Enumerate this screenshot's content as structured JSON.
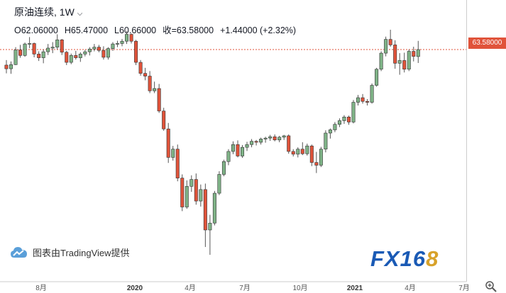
{
  "header": {
    "symbol": "原油连续",
    "interval": "1W",
    "open": "O62.06000",
    "high": "H65.47000",
    "low": "L60.66000",
    "close": "收=63.58000",
    "change": "+1.44000 (+2.32%)"
  },
  "price_tag": "63.58000",
  "attribution": "图表由TradingView提供",
  "logo": {
    "fx": "FX16",
    "eight": "8"
  },
  "colors": {
    "up": "#26a69a",
    "down": "#ef5350",
    "upFill": "#7fb387",
    "downFill": "#e0533a",
    "wick": "#555555",
    "priceLine": "#e0533a"
  },
  "chart_data": {
    "type": "candlestick",
    "x_tick_labels": [
      "8月",
      "2020",
      "4月",
      "7月",
      "10月",
      "2021",
      "4月",
      "7月"
    ],
    "last_close": 63.58,
    "series": [
      {
        "name": "原油连续 1W",
        "ohlc": [
          [
            60.2,
            61.3,
            58.4,
            59.4
          ],
          [
            59.4,
            61.0,
            58.3,
            60.3
          ],
          [
            60.3,
            64.1,
            60.2,
            63.5
          ],
          [
            63.5,
            64.6,
            61.8,
            62.3
          ],
          [
            62.3,
            65.1,
            62.0,
            64.8
          ],
          [
            64.8,
            66.3,
            63.9,
            64.9
          ],
          [
            64.9,
            65.1,
            61.9,
            62.6
          ],
          [
            62.6,
            63.2,
            61.1,
            61.8
          ],
          [
            61.8,
            63.6,
            60.6,
            63.1
          ],
          [
            63.1,
            64.8,
            62.4,
            63.9
          ],
          [
            63.9,
            65.2,
            62.8,
            64.1
          ],
          [
            64.1,
            66.9,
            63.6,
            65.7
          ],
          [
            65.7,
            65.9,
            62.4,
            63.0
          ],
          [
            63.0,
            63.3,
            60.2,
            60.8
          ],
          [
            60.8,
            62.7,
            60.4,
            62.3
          ],
          [
            62.3,
            63.3,
            61.4,
            61.8
          ],
          [
            61.8,
            63.0,
            60.9,
            62.6
          ],
          [
            62.6,
            63.5,
            62.1,
            63.1
          ],
          [
            63.1,
            64.1,
            62.3,
            63.7
          ],
          [
            63.7,
            64.8,
            63.2,
            64.1
          ],
          [
            64.1,
            64.6,
            63.0,
            63.4
          ],
          [
            63.4,
            64.3,
            61.4,
            61.9
          ],
          [
            61.9,
            64.1,
            61.4,
            63.8
          ],
          [
            63.8,
            65.2,
            63.3,
            64.8
          ],
          [
            64.8,
            65.5,
            64.1,
            64.9
          ],
          [
            64.9,
            65.9,
            64.3,
            65.4
          ],
          [
            65.4,
            67.6,
            64.8,
            66.9
          ],
          [
            66.9,
            67.1,
            64.9,
            65.4
          ],
          [
            65.4,
            65.7,
            60.2,
            60.8
          ],
          [
            60.8,
            61.3,
            57.9,
            58.4
          ],
          [
            58.4,
            59.6,
            56.9,
            57.8
          ],
          [
            57.8,
            58.9,
            54.1,
            54.6
          ],
          [
            54.6,
            56.6,
            54.1,
            55.1
          ],
          [
            55.1,
            56.1,
            49.8,
            50.2
          ],
          [
            50.2,
            50.9,
            45.9,
            46.3
          ],
          [
            46.3,
            47.6,
            38.9,
            40.1
          ],
          [
            40.1,
            42.6,
            39.4,
            41.9
          ],
          [
            41.9,
            42.9,
            34.9,
            35.6
          ],
          [
            35.6,
            36.4,
            28.4,
            29.3
          ],
          [
            29.3,
            35.1,
            28.9,
            33.8
          ],
          [
            33.8,
            36.2,
            32.6,
            35.3
          ],
          [
            35.3,
            36.6,
            29.8,
            30.6
          ],
          [
            30.6,
            34.2,
            29.4,
            33.1
          ],
          [
            33.1,
            34.4,
            20.6,
            24.3
          ],
          [
            24.3,
            27.6,
            18.9,
            25.8
          ],
          [
            25.8,
            32.8,
            25.3,
            32.3
          ],
          [
            32.3,
            37.1,
            31.9,
            36.4
          ],
          [
            36.4,
            39.6,
            36.0,
            39.2
          ],
          [
            39.2,
            41.9,
            38.4,
            41.4
          ],
          [
            41.4,
            43.6,
            40.8,
            42.9
          ],
          [
            42.9,
            43.8,
            40.1,
            40.4
          ],
          [
            40.4,
            42.8,
            40.0,
            42.3
          ],
          [
            42.3,
            43.5,
            41.5,
            42.9
          ],
          [
            42.9,
            44.1,
            42.3,
            43.6
          ],
          [
            43.6,
            43.9,
            42.7,
            43.4
          ],
          [
            43.4,
            44.4,
            42.9,
            44.1
          ],
          [
            44.1,
            44.6,
            43.3,
            44.3
          ],
          [
            44.3,
            45.0,
            43.7,
            44.6
          ],
          [
            44.6,
            45.1,
            43.6,
            43.9
          ],
          [
            43.9,
            44.8,
            43.4,
            44.5
          ],
          [
            44.5,
            45.0,
            43.9,
            44.8
          ],
          [
            44.8,
            45.1,
            40.9,
            41.4
          ],
          [
            41.4,
            41.9,
            40.3,
            40.8
          ],
          [
            40.8,
            42.3,
            40.1,
            41.9
          ],
          [
            41.9,
            43.4,
            40.6,
            40.9
          ],
          [
            40.9,
            43.1,
            40.5,
            42.6
          ],
          [
            42.6,
            42.9,
            38.2,
            39.0
          ],
          [
            39.0,
            41.3,
            36.7,
            38.4
          ],
          [
            38.4,
            42.4,
            38.0,
            41.9
          ],
          [
            41.9,
            46.0,
            41.2,
            45.4
          ],
          [
            45.4,
            46.4,
            44.2,
            46.1
          ],
          [
            46.1,
            47.8,
            45.6,
            47.3
          ],
          [
            47.3,
            48.6,
            46.7,
            48.1
          ],
          [
            48.1,
            49.3,
            47.4,
            48.9
          ],
          [
            48.9,
            49.2,
            47.2,
            47.8
          ],
          [
            47.8,
            52.6,
            47.5,
            52.1
          ],
          [
            52.1,
            53.7,
            51.4,
            53.1
          ],
          [
            53.1,
            53.9,
            51.8,
            52.3
          ],
          [
            52.3,
            52.8,
            51.4,
            52.1
          ],
          [
            52.1,
            56.2,
            51.8,
            55.8
          ],
          [
            55.8,
            59.6,
            55.5,
            59.3
          ],
          [
            59.3,
            63.2,
            58.9,
            62.8
          ],
          [
            62.8,
            66.4,
            62.1,
            65.8
          ],
          [
            65.8,
            67.9,
            64.2,
            64.6
          ],
          [
            64.6,
            65.6,
            59.4,
            60.6
          ],
          [
            60.6,
            62.8,
            58.1,
            61.2
          ],
          [
            61.2,
            62.9,
            58.6,
            59.3
          ],
          [
            59.3,
            63.6,
            58.9,
            63.2
          ],
          [
            63.2,
            64.2,
            61.0,
            62.1
          ],
          [
            62.06,
            65.47,
            60.66,
            63.58
          ]
        ]
      }
    ]
  }
}
